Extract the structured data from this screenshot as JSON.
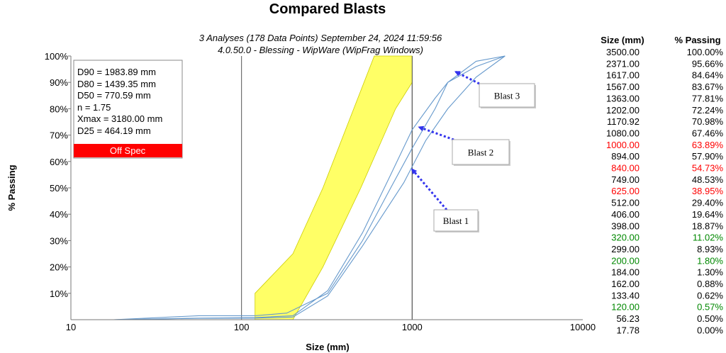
{
  "chart_data": {
    "type": "line",
    "title": "Compared Blasts",
    "subtitle_line1": "3 Analyses (178 Data Points)      September 24, 2024 11:59:56",
    "subtitle_line2": "4.0.50.0  -  Blessing - WipWare (WipFrag Windows)",
    "xlabel": "Size (mm)",
    "ylabel": "% Passing",
    "xscale": "log",
    "xlim": [
      10,
      10000
    ],
    "ylim": [
      0,
      100
    ],
    "x_ticks": [
      10,
      100,
      1000,
      10000
    ],
    "x_tick_labels": [
      "10",
      "100",
      "1000",
      "10000"
    ],
    "y_ticks": [
      10,
      20,
      30,
      40,
      50,
      60,
      70,
      80,
      90,
      100
    ],
    "y_tick_labels": [
      "10%",
      "20%",
      "30%",
      "40%",
      "50%",
      "60%",
      "70%",
      "80%",
      "90%",
      "100%"
    ],
    "grid": "vertical-decades",
    "line_color": "#6699cc",
    "band_color": "#ffff66",
    "band_stroke": "#cccc00",
    "spec_band": {
      "upper": [
        [
          120,
          10
        ],
        [
          200,
          25
        ],
        [
          300,
          50
        ],
        [
          600,
          100
        ]
      ],
      "lower": [
        [
          1000,
          100
        ],
        [
          1000,
          90
        ],
        [
          800,
          80
        ],
        [
          500,
          50
        ],
        [
          300,
          20
        ],
        [
          200,
          0
        ],
        [
          120,
          0
        ]
      ],
      "x_max": 1000
    },
    "series": [
      {
        "x": [
          17.78,
          56.23,
          120,
          184,
          320,
          512,
          749,
          1000,
          1363,
          1617,
          2371,
          3500
        ],
        "y": [
          0,
          1.5,
          1.5,
          2.5,
          10,
          30,
          50,
          65,
          80,
          90,
          98,
          100
        ]
      },
      {
        "x": [
          17.78,
          56.23,
          120,
          200,
          320,
          512,
          749,
          1000,
          1363,
          1617,
          2371,
          3500
        ],
        "y": [
          0,
          0.6,
          0.8,
          1.5,
          11,
          33,
          55,
          72,
          84,
          90,
          96,
          100
        ]
      },
      {
        "x": [
          17.78,
          56.23,
          120,
          200,
          320,
          512,
          894,
          1202,
          1617,
          2371,
          3500
        ],
        "y": [
          0,
          0.5,
          0.6,
          1.0,
          9,
          28,
          52,
          68,
          80,
          92,
          100
        ]
      }
    ],
    "annotations": [
      {
        "label": "Blast 1",
        "arrow_to": [
          1000,
          57
        ]
      },
      {
        "label": "Blast 2",
        "arrow_to": [
          1100,
          73
        ]
      },
      {
        "label": "Blast 3",
        "arrow_to": [
          1800,
          94
        ]
      }
    ]
  },
  "stats": {
    "lines": [
      "D90 = 1983.89 mm",
      "D80 = 1439.35 mm",
      "D50 = 770.59 mm",
      "n = 1.75",
      "Xmax = 3180.00 mm",
      "D25 = 464.19 mm"
    ],
    "status_label": "Off Spec",
    "status_color": "#ff0000"
  },
  "table": {
    "headers": [
      "Size (mm)",
      "% Passing"
    ],
    "rows": [
      [
        "3500.00",
        "100.00%",
        "black"
      ],
      [
        "2371.00",
        "95.66%",
        "black"
      ],
      [
        "1617.00",
        "84.64%",
        "black"
      ],
      [
        "1567.00",
        "83.67%",
        "black"
      ],
      [
        "1363.00",
        "77.81%",
        "black"
      ],
      [
        "1202.00",
        "72.24%",
        "black"
      ],
      [
        "1170.92",
        "70.98%",
        "black"
      ],
      [
        "1080.00",
        "67.46%",
        "black"
      ],
      [
        "1000.00",
        "63.89%",
        "red"
      ],
      [
        "894.00",
        "57.90%",
        "black"
      ],
      [
        "840.00",
        "54.73%",
        "red"
      ],
      [
        "749.00",
        "48.53%",
        "black"
      ],
      [
        "625.00",
        "38.95%",
        "red"
      ],
      [
        "512.00",
        "29.40%",
        "black"
      ],
      [
        "406.00",
        "19.64%",
        "black"
      ],
      [
        "398.00",
        "18.87%",
        "black"
      ],
      [
        "320.00",
        "11.02%",
        "green"
      ],
      [
        "299.00",
        "8.93%",
        "black"
      ],
      [
        "200.00",
        "1.80%",
        "green"
      ],
      [
        "184.00",
        "1.30%",
        "black"
      ],
      [
        "162.00",
        "0.88%",
        "black"
      ],
      [
        "133.40",
        "0.62%",
        "black"
      ],
      [
        "120.00",
        "0.57%",
        "green"
      ],
      [
        "56.23",
        "0.50%",
        "black"
      ],
      [
        "17.78",
        "0.00%",
        "black"
      ]
    ],
    "colors": {
      "black": "#000000",
      "red": "#ff0000",
      "green": "#008800"
    }
  }
}
